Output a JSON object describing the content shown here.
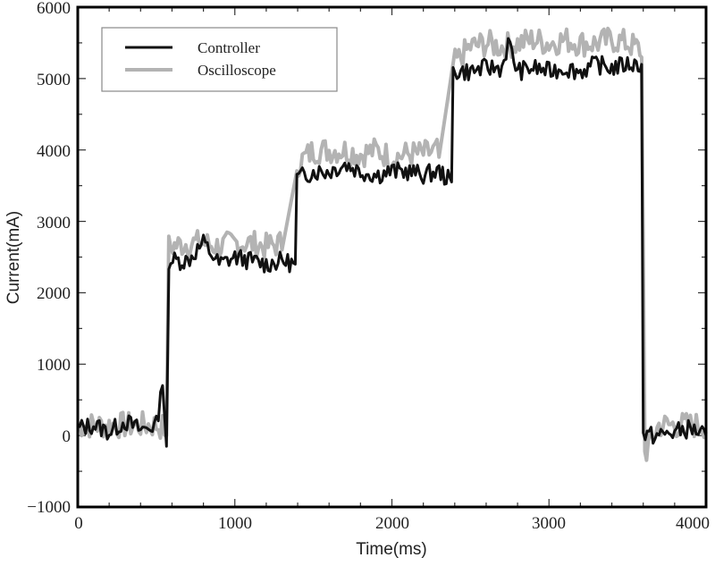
{
  "chart_data": {
    "type": "line",
    "title": "",
    "xlabel": "Time(ms)",
    "ylabel": "Current(mA)",
    "xlim": [
      0,
      4000
    ],
    "ylim": [
      -1000,
      6000
    ],
    "xticks": [
      0,
      1000,
      2000,
      3000,
      4000
    ],
    "yticks": [
      -1000,
      0,
      1000,
      2000,
      3000,
      4000,
      5000,
      6000
    ],
    "grid": false,
    "legend_position": "upper left",
    "series": [
      {
        "name": "Controller",
        "color": "#111111",
        "description": "Step current with noise; levels approx 0, 2450, 3700, 5150, then back to 0",
        "x": [
          0,
          100,
          200,
          300,
          400,
          500,
          540,
          565,
          580,
          700,
          800,
          900,
          1000,
          1100,
          1200,
          1300,
          1385,
          1395,
          1500,
          1600,
          1700,
          1800,
          1900,
          2000,
          2100,
          2200,
          2300,
          2380,
          2390,
          2500,
          2600,
          2700,
          2740,
          2800,
          2900,
          3000,
          3100,
          3200,
          3300,
          3400,
          3500,
          3590,
          3600,
          3700,
          3800,
          3900,
          4000
        ],
        "y": [
          100,
          150,
          50,
          200,
          80,
          150,
          700,
          -150,
          2450,
          2450,
          2700,
          2400,
          2500,
          2450,
          2400,
          2450,
          2400,
          3600,
          3700,
          3700,
          3800,
          3700,
          3650,
          3700,
          3700,
          3650,
          3700,
          3550,
          5100,
          5100,
          5150,
          5150,
          5500,
          5100,
          5150,
          5100,
          5150,
          5100,
          5200,
          5150,
          5200,
          5200,
          0,
          0,
          50,
          100,
          0
        ]
      },
      {
        "name": "Oscilloscope",
        "color": "#b3b3b3",
        "description": "Similar step profile with larger positive ripple",
        "x": [
          0,
          100,
          200,
          300,
          400,
          500,
          565,
          580,
          700,
          800,
          900,
          1000,
          1100,
          1200,
          1300,
          1395,
          1500,
          1600,
          1700,
          1800,
          1900,
          2000,
          2100,
          2200,
          2300,
          2390,
          2500,
          2600,
          2700,
          2800,
          2900,
          3000,
          3100,
          3200,
          3300,
          3400,
          3500,
          3590,
          3610,
          3700,
          3800,
          3900,
          4000
        ],
        "y": [
          50,
          50,
          50,
          50,
          50,
          50,
          0,
          2550,
          2600,
          2600,
          2550,
          2600,
          2600,
          2550,
          2600,
          3700,
          3900,
          3900,
          3900,
          3850,
          3900,
          3800,
          3850,
          3850,
          3900,
          5100,
          5350,
          5400,
          5350,
          5400,
          5450,
          5400,
          5450,
          5400,
          5400,
          5450,
          5400,
          5300,
          -350,
          50,
          50,
          50,
          50
        ]
      }
    ]
  },
  "legend": {
    "items": [
      {
        "label": "Controller",
        "color": "#111111"
      },
      {
        "label": "Oscilloscope",
        "color": "#b3b3b3"
      }
    ]
  },
  "axes": {
    "x_title": "Time(ms)",
    "y_title": "Current(mA)",
    "x_tick_labels": [
      "0",
      "1000",
      "2000",
      "3000",
      "4000"
    ],
    "y_tick_labels": [
      "−1000",
      "0",
      "1000",
      "2000",
      "3000",
      "4000",
      "5000",
      "6000"
    ]
  }
}
